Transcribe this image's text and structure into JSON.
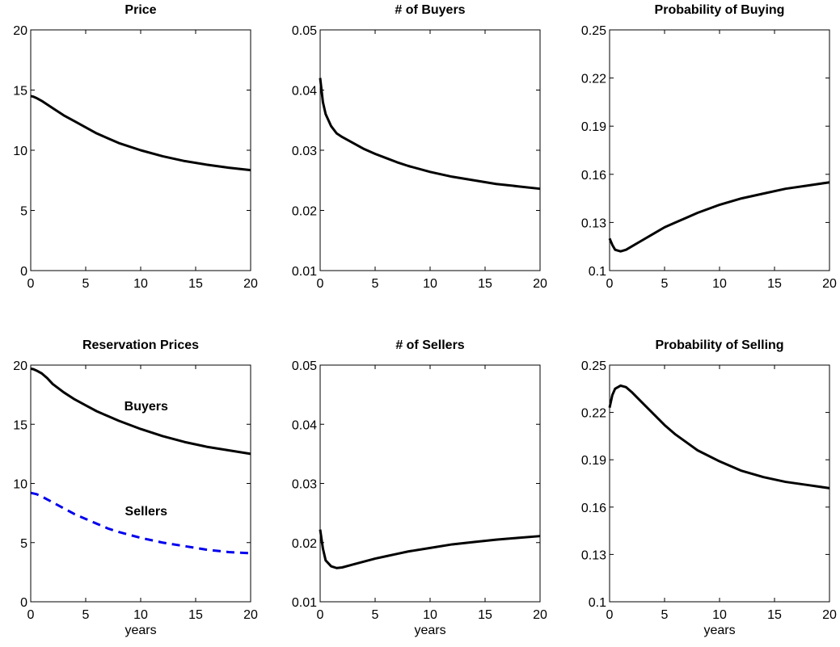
{
  "chart_data": [
    {
      "type": "line",
      "title": "Price",
      "x": [
        0,
        0.25,
        0.5,
        1,
        1.5,
        2,
        3,
        4,
        5,
        6,
        7,
        8,
        10,
        12,
        14,
        16,
        18,
        20
      ],
      "series": [
        {
          "color": "#000000",
          "values": [
            14.5,
            14.45,
            14.35,
            14.1,
            13.8,
            13.5,
            12.9,
            12.4,
            11.9,
            11.4,
            11.0,
            10.6,
            10.0,
            9.5,
            9.1,
            8.8,
            8.55,
            8.35
          ]
        }
      ],
      "xlim": [
        0,
        20
      ],
      "xticks": [
        0,
        5,
        10,
        15,
        20
      ],
      "ylim": [
        0,
        20
      ],
      "yticks": [
        0,
        5,
        10,
        15,
        20
      ]
    },
    {
      "type": "line",
      "title": "# of Buyers",
      "x": [
        0,
        0.25,
        0.5,
        1,
        1.5,
        2,
        3,
        4,
        5,
        6,
        7,
        8,
        10,
        12,
        14,
        16,
        18,
        20
      ],
      "series": [
        {
          "color": "#000000",
          "values": [
            0.042,
            0.038,
            0.036,
            0.034,
            0.0328,
            0.0322,
            0.0312,
            0.0302,
            0.0294,
            0.0287,
            0.028,
            0.0274,
            0.0264,
            0.0256,
            0.025,
            0.0244,
            0.024,
            0.0236
          ]
        }
      ],
      "xlim": [
        0,
        20
      ],
      "xticks": [
        0,
        5,
        10,
        15,
        20
      ],
      "ylim": [
        0.01,
        0.05
      ],
      "yticks": [
        0.01,
        0.02,
        0.03,
        0.04,
        0.05
      ]
    },
    {
      "type": "line",
      "title": "Probability of Buying",
      "x": [
        0,
        0.25,
        0.5,
        1,
        1.5,
        2,
        3,
        4,
        5,
        6,
        7,
        8,
        10,
        12,
        14,
        16,
        18,
        20
      ],
      "series": [
        {
          "color": "#000000",
          "values": [
            0.12,
            0.116,
            0.113,
            0.112,
            0.113,
            0.115,
            0.119,
            0.123,
            0.127,
            0.13,
            0.133,
            0.136,
            0.141,
            0.145,
            0.148,
            0.151,
            0.153,
            0.155
          ]
        }
      ],
      "xlim": [
        0,
        20
      ],
      "xticks": [
        0,
        5,
        10,
        15,
        20
      ],
      "ylim": [
        0.1,
        0.25
      ],
      "yticks": [
        0.1,
        0.13,
        0.16,
        0.19,
        0.22,
        0.25
      ]
    },
    {
      "type": "line",
      "title": "Reservation Prices",
      "xlabel": "years",
      "x": [
        0,
        0.25,
        0.5,
        1,
        1.5,
        2,
        3,
        4,
        5,
        6,
        7,
        8,
        10,
        12,
        14,
        16,
        18,
        20
      ],
      "series": [
        {
          "color": "#000000",
          "values": [
            19.7,
            19.65,
            19.55,
            19.3,
            18.9,
            18.4,
            17.7,
            17.1,
            16.6,
            16.1,
            15.7,
            15.3,
            14.6,
            14.0,
            13.5,
            13.1,
            12.8,
            12.5
          ]
        },
        {
          "color": "#0000ee",
          "dashed": true,
          "values": [
            9.2,
            9.15,
            9.1,
            8.9,
            8.65,
            8.4,
            7.9,
            7.4,
            7.0,
            6.6,
            6.2,
            5.9,
            5.4,
            5.0,
            4.7,
            4.4,
            4.2,
            4.1
          ]
        }
      ],
      "annotations": [
        {
          "text": "Buyers",
          "x": 10.5,
          "y": 16.6
        },
        {
          "text": "Sellers",
          "x": 10.5,
          "y": 7.7
        }
      ],
      "xlim": [
        0,
        20
      ],
      "xticks": [
        0,
        5,
        10,
        15,
        20
      ],
      "ylim": [
        0,
        20
      ],
      "yticks": [
        0,
        5,
        10,
        15,
        20
      ]
    },
    {
      "type": "line",
      "title": "# of Sellers",
      "xlabel": "years",
      "x": [
        0,
        0.25,
        0.5,
        1,
        1.5,
        2,
        3,
        4,
        5,
        6,
        7,
        8,
        10,
        12,
        14,
        16,
        18,
        20
      ],
      "series": [
        {
          "color": "#000000",
          "values": [
            0.0222,
            0.019,
            0.017,
            0.016,
            0.0157,
            0.0158,
            0.0163,
            0.0168,
            0.0173,
            0.0177,
            0.0181,
            0.0185,
            0.0191,
            0.0197,
            0.0201,
            0.0205,
            0.0208,
            0.0211
          ]
        }
      ],
      "xlim": [
        0,
        20
      ],
      "xticks": [
        0,
        5,
        10,
        15,
        20
      ],
      "ylim": [
        0.01,
        0.05
      ],
      "yticks": [
        0.01,
        0.02,
        0.03,
        0.04,
        0.05
      ]
    },
    {
      "type": "line",
      "title": "Probability of Selling",
      "xlabel": "years",
      "x": [
        0,
        0.25,
        0.5,
        1,
        1.5,
        2,
        3,
        4,
        5,
        6,
        7,
        8,
        10,
        12,
        14,
        16,
        18,
        20
      ],
      "series": [
        {
          "color": "#000000",
          "values": [
            0.223,
            0.231,
            0.235,
            0.237,
            0.236,
            0.233,
            0.226,
            0.219,
            0.212,
            0.206,
            0.201,
            0.196,
            0.189,
            0.183,
            0.179,
            0.176,
            0.174,
            0.172
          ]
        }
      ],
      "xlim": [
        0,
        20
      ],
      "xticks": [
        0,
        5,
        10,
        15,
        20
      ],
      "ylim": [
        0.1,
        0.25
      ],
      "yticks": [
        0.1,
        0.13,
        0.16,
        0.19,
        0.22,
        0.25
      ]
    }
  ]
}
